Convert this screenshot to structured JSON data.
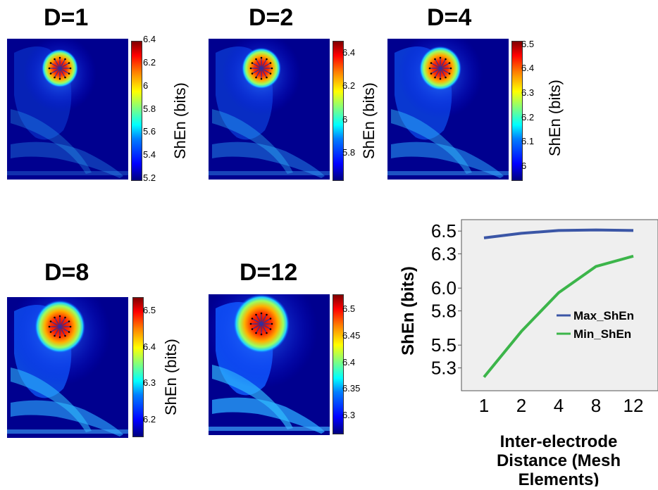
{
  "chart_data": [
    {
      "type": "heatmap",
      "title": "D=1",
      "colorbar_label": "ShEn (bits)",
      "colorbar_ticks": [
        "6.4",
        "6.2",
        "6",
        "5.8",
        "5.6",
        "5.4",
        "5.2"
      ],
      "colorbar_range": [
        5.2,
        6.4
      ],
      "colormap": "jet"
    },
    {
      "type": "heatmap",
      "title": "D=2",
      "colorbar_label": "ShEn (bits)",
      "colorbar_ticks": [
        "6.4",
        "6.2",
        "6",
        "5.8"
      ],
      "colorbar_range": [
        5.65,
        6.48
      ],
      "colormap": "jet"
    },
    {
      "type": "heatmap",
      "title": "D=4",
      "colorbar_label": "ShEn (bits)",
      "colorbar_ticks": [
        "6.5",
        "6.4",
        "6.3",
        "6.2",
        "6.1",
        "6"
      ],
      "colorbar_range": [
        5.95,
        6.52
      ],
      "colormap": "jet"
    },
    {
      "type": "heatmap",
      "title": "D=8",
      "colorbar_label": "ShEn (bits)",
      "colorbar_ticks": [
        "6.5",
        "6.4",
        "6.3",
        "6.2"
      ],
      "colorbar_range": [
        6.16,
        6.54
      ],
      "colormap": "jet"
    },
    {
      "type": "heatmap",
      "title": "D=12",
      "colorbar_label": "ShEn (bits)",
      "colorbar_ticks": [
        "6.5",
        "6.45",
        "6.4",
        "6.35",
        "6.3"
      ],
      "colorbar_range": [
        6.27,
        6.53
      ],
      "colormap": "jet"
    },
    {
      "type": "line",
      "categories": [
        "1",
        "2",
        "4",
        "8",
        "12"
      ],
      "series": [
        {
          "name": "Max_ShEn",
          "color": "#3b56a6",
          "values": [
            6.44,
            6.48,
            6.505,
            6.51,
            6.505
          ]
        },
        {
          "name": "Min_ShEn",
          "color": "#3cb54a",
          "values": [
            5.22,
            5.62,
            5.96,
            6.19,
            6.28
          ]
        }
      ],
      "xlabel": "Inter-electrode Distance (Mesh Elements)",
      "ylabel": "ShEn (bits)",
      "yticks": [
        "6.5",
        "6.3",
        "6.0",
        "5.8",
        "5.5",
        "5.3"
      ],
      "ylim": [
        5.1,
        6.6
      ],
      "legend": "right",
      "background": "#efefef"
    }
  ]
}
